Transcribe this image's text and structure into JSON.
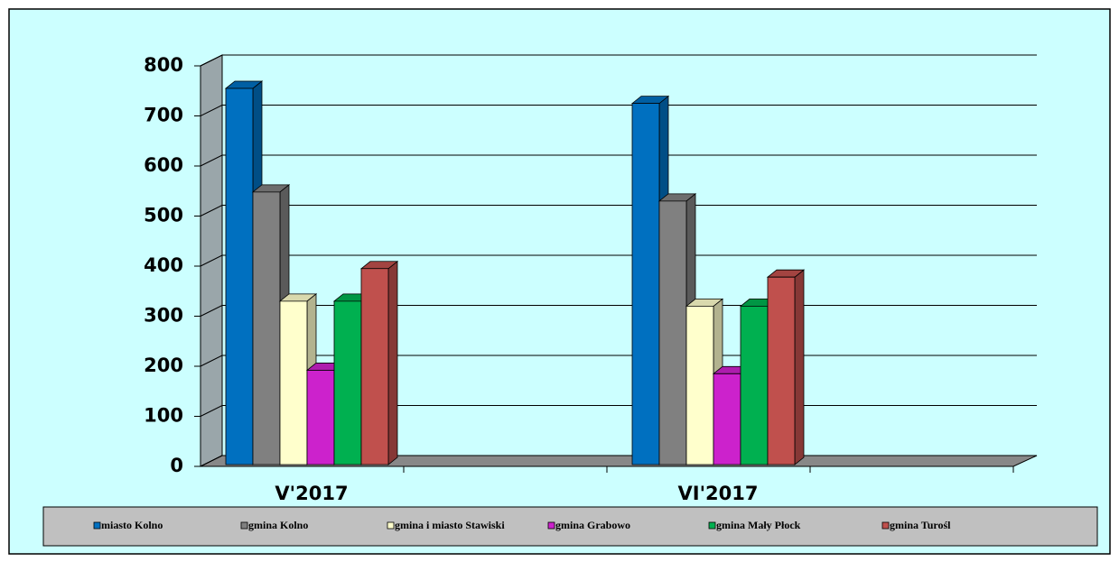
{
  "chart_data": {
    "type": "bar",
    "categories": [
      "V'2017",
      "VI'2017"
    ],
    "series": [
      {
        "name": "miasto Kolno",
        "color": "#0070c0",
        "values": [
          755,
          725
        ]
      },
      {
        "name": "gmina Kolno",
        "color": "#808080",
        "values": [
          548,
          530
        ]
      },
      {
        "name": "gmina i miasto Stawiski",
        "color": "#ffffcc",
        "values": [
          330,
          320
        ]
      },
      {
        "name": "gmina Grabowo",
        "color": "#cc22cc",
        "values": [
          192,
          185
        ]
      },
      {
        "name": "gmina Mały Płock",
        "color": "#00b050",
        "values": [
          330,
          320
        ]
      },
      {
        "name": "gmina Turośl",
        "color": "#c0504d",
        "values": [
          395,
          378
        ]
      }
    ],
    "ylim": [
      0,
      800
    ],
    "yticks": [
      0,
      100,
      200,
      300,
      400,
      500,
      600,
      700,
      800
    ],
    "grid": true
  }
}
